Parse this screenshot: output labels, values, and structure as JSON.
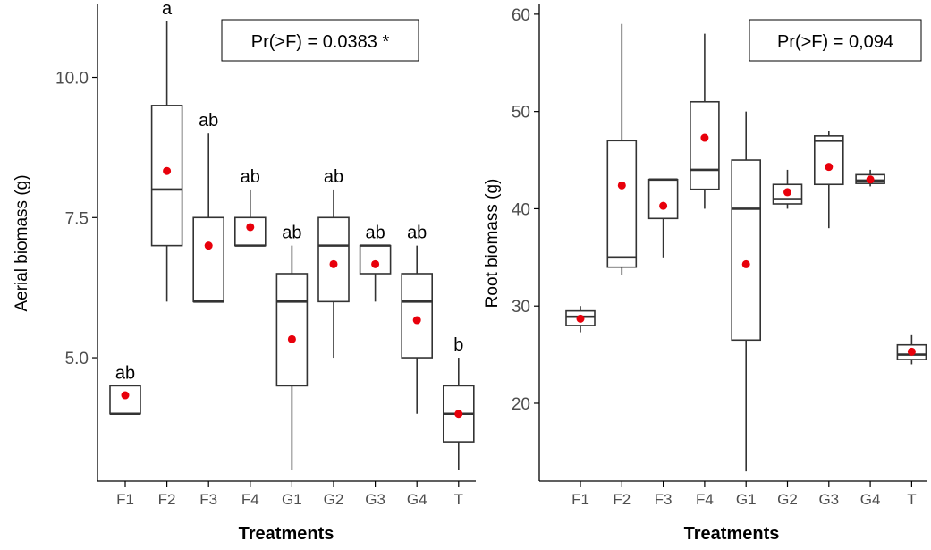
{
  "chart_data": [
    {
      "type": "box",
      "panel": "left",
      "title": "",
      "xlabel": "Treatments",
      "ylabel": "Aerial biomass (g)",
      "ylim": [
        2.8,
        11.3
      ],
      "yticks": [
        5.0,
        7.5,
        10.0
      ],
      "ytick_labels": [
        "5.0",
        "7.5",
        "10.0"
      ],
      "annotation": "Pr(>F) = 0.0383 *",
      "mean_color": "#e8000b",
      "categories": [
        "F1",
        "F2",
        "F3",
        "F4",
        "G1",
        "G2",
        "G3",
        "G4",
        "T"
      ],
      "boxes": [
        {
          "min": 4.0,
          "q1": 4.0,
          "median": 4.0,
          "q3": 4.5,
          "max": 4.5,
          "mean": 4.33,
          "letter": "ab"
        },
        {
          "min": 6.0,
          "q1": 7.0,
          "median": 8.0,
          "q3": 9.5,
          "max": 11.0,
          "mean": 8.33,
          "letter": "a"
        },
        {
          "min": 6.0,
          "q1": 6.0,
          "median": 6.0,
          "q3": 7.5,
          "max": 9.0,
          "mean": 7.0,
          "letter": "ab"
        },
        {
          "min": 7.0,
          "q1": 7.0,
          "median": 7.0,
          "q3": 7.5,
          "max": 8.0,
          "mean": 7.33,
          "letter": "ab"
        },
        {
          "min": 3.0,
          "q1": 4.5,
          "median": 6.0,
          "q3": 6.5,
          "max": 7.0,
          "mean": 5.33,
          "letter": "ab"
        },
        {
          "min": 5.0,
          "q1": 6.0,
          "median": 7.0,
          "q3": 7.5,
          "max": 8.0,
          "mean": 6.67,
          "letter": "ab"
        },
        {
          "min": 6.0,
          "q1": 6.5,
          "median": 7.0,
          "q3": 7.0,
          "max": 7.0,
          "mean": 6.67,
          "letter": "ab"
        },
        {
          "min": 4.0,
          "q1": 5.0,
          "median": 6.0,
          "q3": 6.5,
          "max": 7.0,
          "mean": 5.67,
          "letter": "ab"
        },
        {
          "min": 3.0,
          "q1": 3.5,
          "median": 4.0,
          "q3": 4.5,
          "max": 5.0,
          "mean": 4.0,
          "letter": "b"
        }
      ]
    },
    {
      "type": "box",
      "panel": "right",
      "title": "",
      "xlabel": "Treatments",
      "ylabel": "Root biomass (g)",
      "ylim": [
        12.0,
        61.0
      ],
      "yticks": [
        20,
        30,
        40,
        50,
        60
      ],
      "ytick_labels": [
        "20",
        "30",
        "40",
        "50",
        "60"
      ],
      "annotation": "Pr(>F) = 0,094",
      "mean_color": "#e8000b",
      "categories": [
        "F1",
        "F2",
        "F3",
        "F4",
        "G1",
        "G2",
        "G3",
        "G4",
        "T"
      ],
      "boxes": [
        {
          "min": 27.3,
          "q1": 28.0,
          "median": 28.9,
          "q3": 29.5,
          "max": 30.0,
          "mean": 28.7
        },
        {
          "min": 33.2,
          "q1": 34.0,
          "median": 35.0,
          "q3": 47.0,
          "max": 59.0,
          "mean": 42.4
        },
        {
          "min": 35.0,
          "q1": 39.0,
          "median": 43.0,
          "q3": 43.0,
          "max": 43.0,
          "mean": 40.3
        },
        {
          "min": 40.0,
          "q1": 42.0,
          "median": 44.0,
          "q3": 51.0,
          "max": 58.0,
          "mean": 47.3
        },
        {
          "min": 13.0,
          "q1": 26.5,
          "median": 40.0,
          "q3": 45.0,
          "max": 50.0,
          "mean": 34.3
        },
        {
          "min": 40.0,
          "q1": 40.5,
          "median": 41.0,
          "q3": 42.5,
          "max": 44.0,
          "mean": 41.7
        },
        {
          "min": 38.0,
          "q1": 42.5,
          "median": 47.0,
          "q3": 47.5,
          "max": 48.0,
          "mean": 44.3
        },
        {
          "min": 42.3,
          "q1": 42.6,
          "median": 42.9,
          "q3": 43.5,
          "max": 44.0,
          "mean": 43.0
        },
        {
          "min": 24.0,
          "q1": 24.5,
          "median": 25.0,
          "q3": 26.0,
          "max": 27.0,
          "mean": 25.3
        }
      ]
    }
  ]
}
